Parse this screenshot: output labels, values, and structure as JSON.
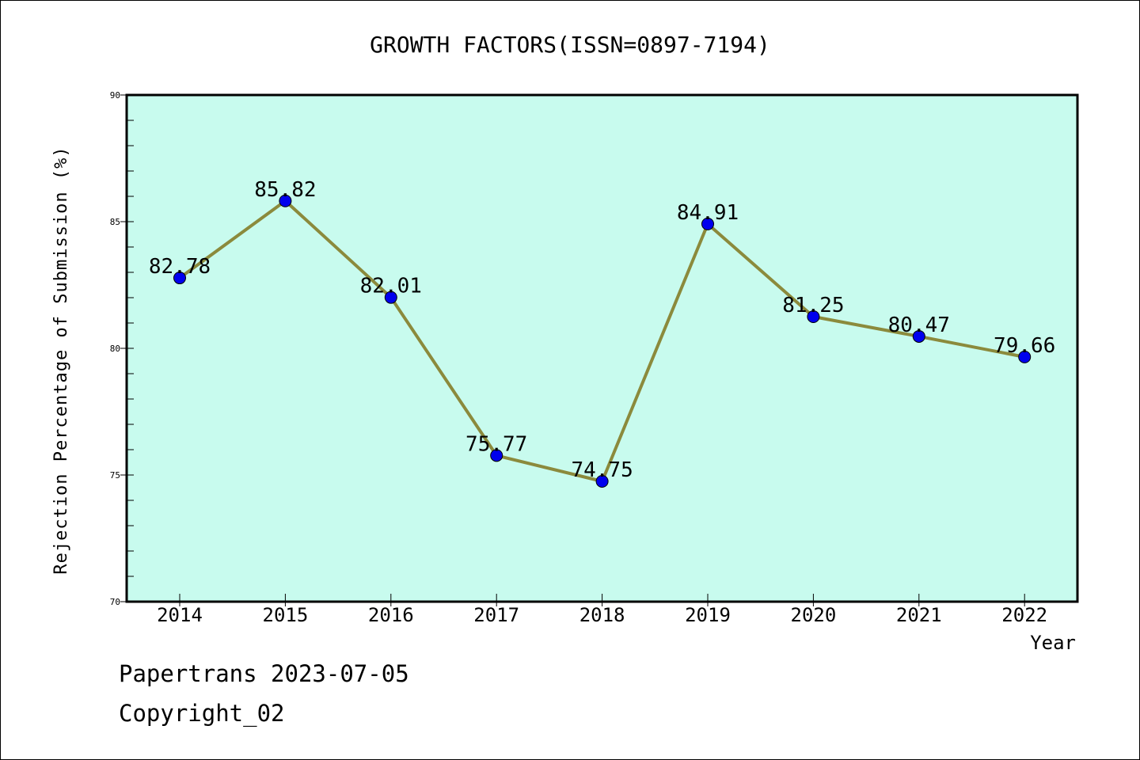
{
  "chart_data": {
    "type": "line",
    "title": "GROWTH FACTORS(ISSN=0897-7194)",
    "xlabel": "Year",
    "ylabel": "Rejection Percentage of Submission (%)",
    "categories": [
      "2014",
      "2015",
      "2016",
      "2017",
      "2018",
      "2019",
      "2020",
      "2021",
      "2022"
    ],
    "series": [
      {
        "values": [
          82.78,
          85.82,
          82.01,
          75.77,
          74.75,
          84.91,
          81.25,
          80.47,
          79.66
        ],
        "data_labels": [
          "82.78",
          "85.82",
          "82.01",
          "75.77",
          "74.75",
          "84.91",
          "81.25",
          "80.47",
          "79.66"
        ],
        "line_color": "#8b8a3c",
        "marker_color": "#0000ee"
      }
    ],
    "ylim": [
      70,
      90
    ],
    "y_ticks": [
      70,
      75,
      80,
      85,
      90
    ],
    "y_tick_labels": [
      "70",
      "75",
      "80",
      "85",
      "90"
    ],
    "grid": false,
    "legend": "none",
    "plot_background": "#c8fbee"
  },
  "footer": {
    "date_line": "Papertrans 2023-07-05",
    "copyright_line": "Copyright_02"
  }
}
